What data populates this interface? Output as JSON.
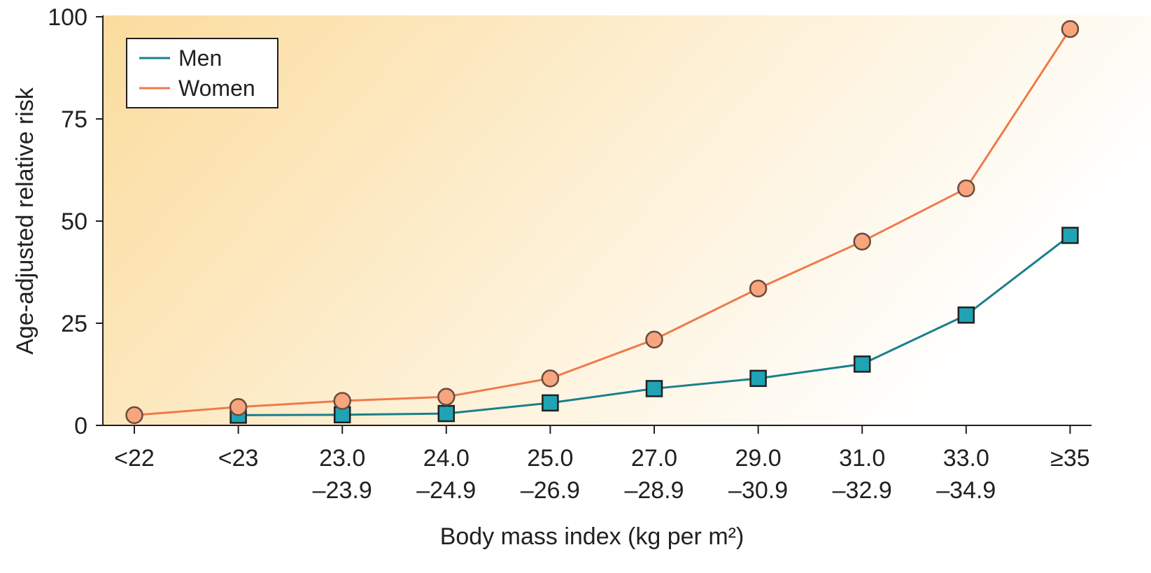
{
  "chart_data": {
    "type": "line",
    "title": "",
    "xlabel": "Body mass index (kg per m²)",
    "ylabel": "Age-adjusted relative risk",
    "categories": [
      [
        "<22"
      ],
      [
        "<23"
      ],
      [
        "23.0",
        "–23.9"
      ],
      [
        "24.0",
        "–24.9"
      ],
      [
        "25.0",
        "–26.9"
      ],
      [
        "27.0",
        "–28.9"
      ],
      [
        "29.0",
        "–30.9"
      ],
      [
        "31.0",
        "–32.9"
      ],
      [
        "33.0",
        "–34.9"
      ],
      [
        "≥35"
      ]
    ],
    "ylim": [
      0,
      100
    ],
    "yticks": [
      "0",
      "25",
      "50",
      "75",
      "100"
    ],
    "legend_position": "top-left",
    "grid": false,
    "background": "gradient pale orange",
    "series": [
      {
        "name": "Men",
        "color": "#1a7f8c",
        "marker": "square",
        "marker_color": "#1fa3b5",
        "values": [
          null,
          2.5,
          2.6,
          2.9,
          5.5,
          9.0,
          11.5,
          15.0,
          27.0,
          46.5
        ]
      },
      {
        "name": "Women",
        "color": "#ef7a4a",
        "marker": "circle",
        "marker_color": "#f7a57e",
        "values": [
          2.5,
          4.5,
          6.0,
          7.0,
          11.5,
          21.0,
          33.5,
          45.0,
          58.0,
          97.0
        ]
      }
    ]
  }
}
